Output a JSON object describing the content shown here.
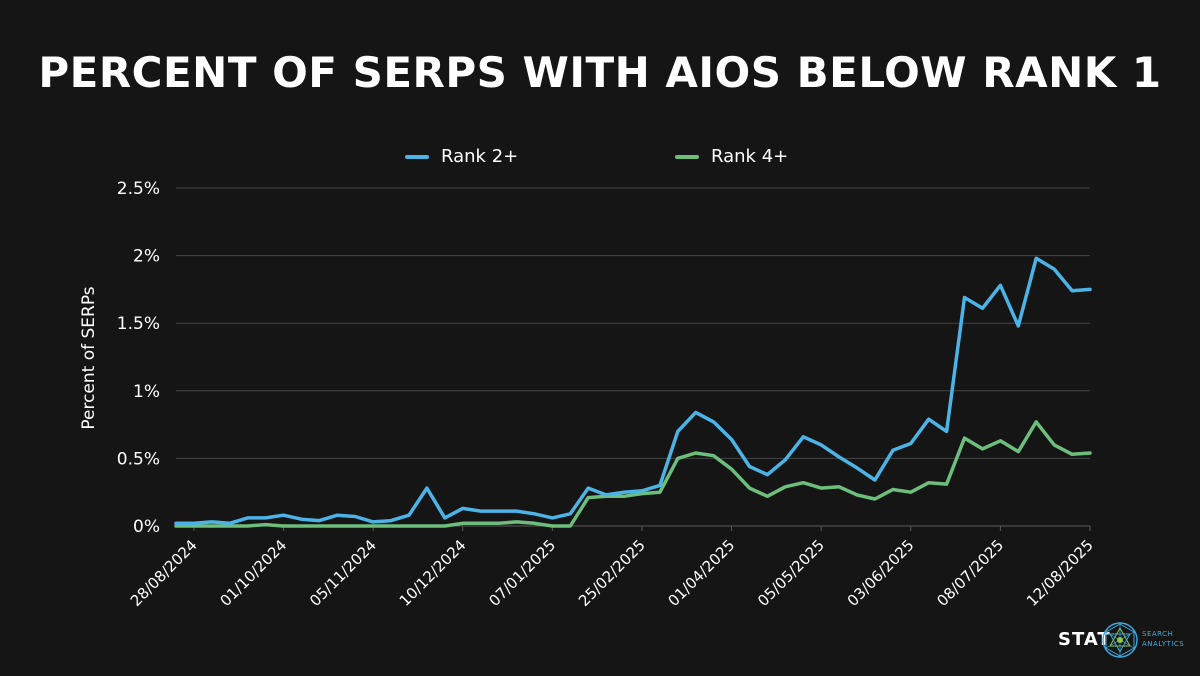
{
  "colors": {
    "background": "#151515",
    "rank2": "#4cb3e6",
    "rank4": "#6dbd7d",
    "grid": "#444444",
    "text": "#ffffff",
    "logo_accent": "#3fa9e0",
    "logo_green": "#8dc63f"
  },
  "chart_data": {
    "type": "line",
    "title": "PERCENT OF SERPS WITH AIOS BELOW RANK 1",
    "ylabel": "Percent of SERPs",
    "xlabel": "",
    "ylim": [
      0,
      2.5
    ],
    "y_ticks": [
      {
        "value": 0,
        "label": "0%"
      },
      {
        "value": 0.5,
        "label": "0.5%"
      },
      {
        "value": 1,
        "label": "1%"
      },
      {
        "value": 1.5,
        "label": "1.5%"
      },
      {
        "value": 2,
        "label": "2%"
      },
      {
        "value": 2.5,
        "label": "2.5%"
      }
    ],
    "x_tick_labels": [
      {
        "index": 1,
        "label": "28/08/2024"
      },
      {
        "index": 6,
        "label": "01/10/2024"
      },
      {
        "index": 11,
        "label": "05/11/2024"
      },
      {
        "index": 16,
        "label": "10/12/2024"
      },
      {
        "index": 21,
        "label": "07/01/2025"
      },
      {
        "index": 26,
        "label": "25/02/2025"
      },
      {
        "index": 31,
        "label": "01/04/2025"
      },
      {
        "index": 36,
        "label": "05/05/2025"
      },
      {
        "index": 41,
        "label": "03/06/2025"
      },
      {
        "index": 46,
        "label": "08/07/2025"
      },
      {
        "index": 51,
        "label": "12/08/2025"
      }
    ],
    "point_count": 52,
    "series": [
      {
        "name": "Rank 2+",
        "color": "#4cb3e6",
        "values": [
          0.02,
          0.02,
          0.03,
          0.02,
          0.06,
          0.06,
          0.08,
          0.05,
          0.04,
          0.08,
          0.07,
          0.03,
          0.04,
          0.08,
          0.28,
          0.06,
          0.13,
          0.11,
          0.11,
          0.11,
          0.09,
          0.06,
          0.09,
          0.28,
          0.23,
          0.25,
          0.26,
          0.3,
          0.7,
          0.84,
          0.77,
          0.64,
          0.44,
          0.38,
          0.49,
          0.66,
          0.6,
          0.51,
          0.43,
          0.34,
          0.56,
          0.61,
          0.79,
          0.7,
          1.69,
          1.61,
          1.78,
          1.48,
          1.98,
          1.9,
          1.74,
          1.75
        ]
      },
      {
        "name": "Rank 4+",
        "color": "#6dbd7d",
        "values": [
          0.0,
          0.0,
          0.0,
          0.0,
          0.0,
          0.01,
          0.0,
          0.0,
          0.0,
          0.0,
          0.0,
          0.0,
          0.0,
          0.0,
          0.0,
          0.0,
          0.02,
          0.02,
          0.02,
          0.03,
          0.02,
          0.0,
          0.0,
          0.21,
          0.22,
          0.22,
          0.24,
          0.25,
          0.5,
          0.54,
          0.52,
          0.42,
          0.28,
          0.22,
          0.29,
          0.32,
          0.28,
          0.29,
          0.23,
          0.2,
          0.27,
          0.25,
          0.32,
          0.31,
          0.65,
          0.57,
          0.63,
          0.55,
          0.77,
          0.6,
          0.53,
          0.54
        ]
      }
    ],
    "legend_position": "top-center"
  },
  "logo": {
    "wordmark": "STAT",
    "tagline_line1": "SEARCH",
    "tagline_line2": "ANALYTICS"
  }
}
